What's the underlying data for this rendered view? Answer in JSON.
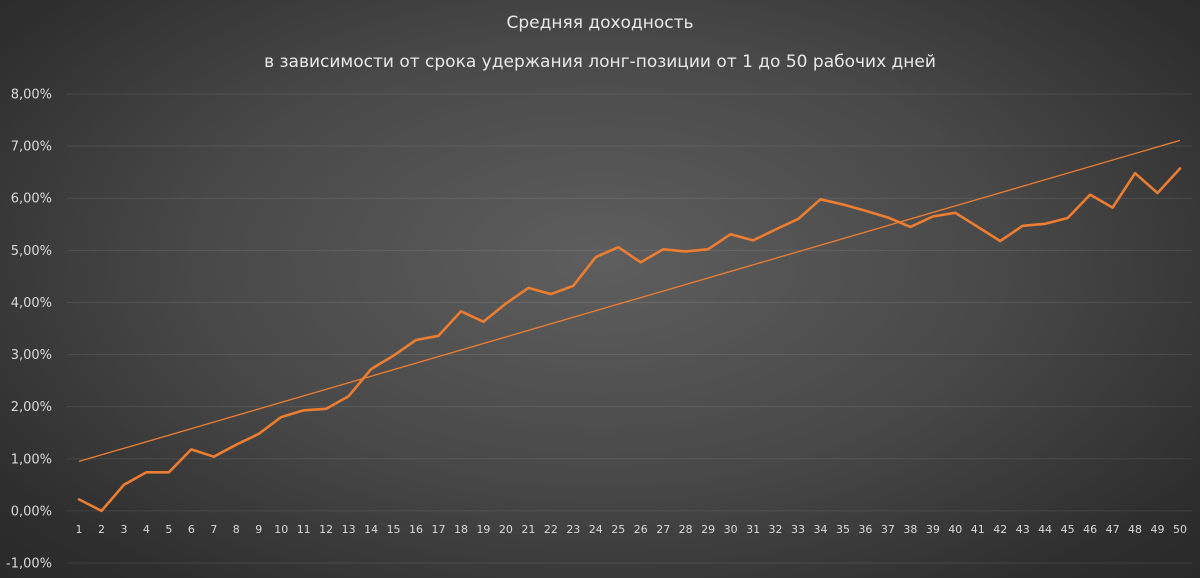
{
  "chart_data": {
    "type": "line",
    "title": "Средняя доходность",
    "subtitle": "в зависимости от срока удержания лонг-позиции от 1 до 50 рабочих дней",
    "xlabel": "",
    "ylabel": "",
    "ylim": [
      -0.01,
      0.08
    ],
    "y_ticks": [
      0.08,
      0.07,
      0.06,
      0.05,
      0.04,
      0.03,
      0.02,
      0.01,
      0.0,
      -0.01
    ],
    "y_tick_labels": [
      "8,00%",
      "7,00%",
      "6,00%",
      "5,00%",
      "4,00%",
      "3,00%",
      "2,00%",
      "1,00%",
      "0,00%",
      "-1,00%"
    ],
    "x_tick_labels": [
      "1",
      "2",
      "3",
      "4",
      "5",
      "6",
      "7",
      "8",
      "9",
      "10",
      "11",
      "12",
      "13",
      "14",
      "15",
      "16",
      "17",
      "18",
      "19",
      "20",
      "21",
      "22",
      "23",
      "24",
      "25",
      "26",
      "27",
      "28",
      "29",
      "30",
      "31",
      "32",
      "33",
      "34",
      "35",
      "36",
      "37",
      "38",
      "39",
      "40",
      "41",
      "42",
      "43",
      "44",
      "45",
      "46",
      "47",
      "48",
      "49",
      "50"
    ],
    "grid": true,
    "legend": "none",
    "series": [
      {
        "color": "#ed7d31",
        "values": [
          0.0022,
          0.0,
          0.005,
          0.0074,
          0.0074,
          0.0118,
          0.0104,
          0.0127,
          0.0148,
          0.018,
          0.0193,
          0.0196,
          0.022,
          0.0272,
          0.0298,
          0.0328,
          0.0336,
          0.0383,
          0.0363,
          0.0398,
          0.0428,
          0.0416,
          0.0432,
          0.0487,
          0.0506,
          0.0477,
          0.0502,
          0.0498,
          0.0502,
          0.0531,
          0.0519,
          0.054,
          0.056,
          0.0598,
          0.0588,
          0.0576,
          0.0563,
          0.0545,
          0.0565,
          0.0572,
          0.0545,
          0.0518,
          0.0547,
          0.0551,
          0.0562,
          0.0607,
          0.0582,
          0.0648,
          0.061,
          0.0657
        ]
      },
      {
        "color": "#ed7d31",
        "trendline": true,
        "values_linear": {
          "start": 0.0095,
          "end": 0.0711
        }
      }
    ]
  }
}
